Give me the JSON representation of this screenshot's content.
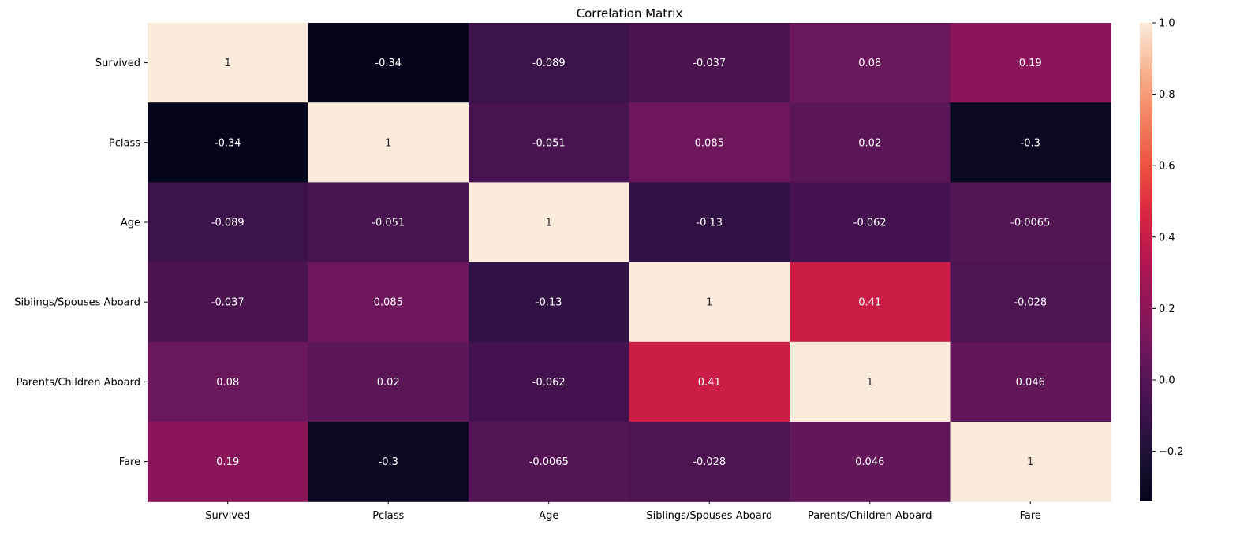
{
  "chart_data": {
    "type": "heatmap",
    "title": "Correlation Matrix",
    "xlabel": "",
    "ylabel": "",
    "x_categories": [
      "Survived",
      "Pclass",
      "Age",
      "Siblings/Spouses Aboard",
      "Parents/Children Aboard",
      "Fare"
    ],
    "y_categories": [
      "Survived",
      "Pclass",
      "Age",
      "Siblings/Spouses Aboard",
      "Parents/Children Aboard",
      "Fare"
    ],
    "values": [
      [
        1,
        -0.34,
        -0.089,
        -0.037,
        0.08,
        0.19
      ],
      [
        -0.34,
        1,
        -0.051,
        0.085,
        0.02,
        -0.3
      ],
      [
        -0.089,
        -0.051,
        1,
        -0.13,
        -0.062,
        -0.0065
      ],
      [
        -0.037,
        0.085,
        -0.13,
        1,
        0.41,
        -0.028
      ],
      [
        0.08,
        0.02,
        -0.062,
        0.41,
        1,
        0.046
      ],
      [
        0.19,
        -0.3,
        -0.0065,
        -0.028,
        0.046,
        1
      ]
    ],
    "labels": [
      [
        "1",
        "-0.34",
        "-0.089",
        "-0.037",
        "0.08",
        "0.19"
      ],
      [
        "-0.34",
        "1",
        "-0.051",
        "0.085",
        "0.02",
        "-0.3"
      ],
      [
        "-0.089",
        "-0.051",
        "1",
        "-0.13",
        "-0.062",
        "-0.0065"
      ],
      [
        "-0.037",
        "0.085",
        "-0.13",
        "1",
        "0.41",
        "-0.028"
      ],
      [
        "0.08",
        "0.02",
        "-0.062",
        "0.41",
        "1",
        "0.046"
      ],
      [
        "0.19",
        "-0.3",
        "-0.0065",
        "-0.028",
        "0.046",
        "1"
      ]
    ],
    "colorbar": {
      "range": [
        -0.34,
        1.0
      ],
      "ticks": [
        -0.2,
        0.0,
        0.2,
        0.4,
        0.6,
        0.8,
        1.0
      ],
      "tick_labels": [
        "−0.2",
        "0.0",
        "0.2",
        "0.4",
        "0.6",
        "0.8",
        "1.0"
      ],
      "colormap": "rocket"
    },
    "grid": false,
    "legend": "colorbar-right"
  }
}
